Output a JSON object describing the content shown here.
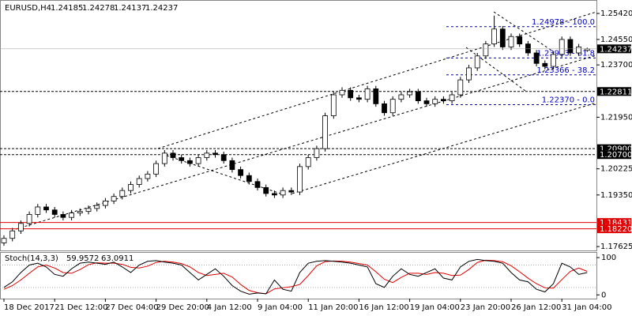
{
  "chart_data": {
    "type": "candlestick",
    "title": "EURUSD,H4",
    "categories": [
      "18 Dec 2017",
      null,
      null,
      null,
      null,
      null,
      "21 Dec 12:00",
      null,
      null,
      null,
      null,
      null,
      "27 Dec 04:00",
      null,
      null,
      null,
      null,
      null,
      "29 Dec 20:00",
      null,
      null,
      null,
      null,
      null,
      "4 Jan 12:00",
      null,
      null,
      null,
      null,
      null,
      "9 Jan 04:00",
      null,
      null,
      null,
      null,
      null,
      "11 Jan 20:00",
      null,
      null,
      null,
      null,
      null,
      "16 Jan 12:00",
      null,
      null,
      null,
      null,
      null,
      "19 Jan 04:00",
      null,
      null,
      null,
      null,
      null,
      "23 Jan 20:00",
      null,
      null,
      null,
      null,
      null,
      "26 Jan 12:00",
      null,
      null,
      null,
      null,
      null,
      "31 Jan 04:00",
      null,
      null,
      null
    ],
    "open": [
      1.1775,
      1.179,
      1.1815,
      1.184,
      1.187,
      1.1895,
      1.1885,
      1.187,
      1.186,
      1.1875,
      1.188,
      1.189,
      1.19,
      1.1915,
      1.193,
      1.195,
      1.197,
      1.199,
      1.2005,
      1.204,
      1.2075,
      1.206,
      1.205,
      1.204,
      1.206,
      1.2075,
      1.207,
      1.205,
      1.202,
      1.2,
      1.198,
      1.196,
      1.194,
      1.1935,
      1.195,
      1.1945,
      1.203,
      1.206,
      1.209,
      1.22,
      1.227,
      1.2285,
      1.226,
      1.2255,
      1.229,
      1.224,
      1.221,
      1.2255,
      1.227,
      1.228,
      1.225,
      1.224,
      1.2255,
      1.225,
      1.227,
      1.232,
      1.236,
      1.24,
      1.244,
      1.249,
      1.243,
      1.2465,
      1.244,
      1.241,
      1.2375,
      1.2365,
      1.2405,
      1.2455,
      1.241,
      1.24185
    ],
    "high": [
      1.18,
      1.1825,
      1.185,
      1.188,
      1.1905,
      1.1905,
      1.1895,
      1.188,
      1.1885,
      1.189,
      1.19,
      1.191,
      1.1925,
      1.194,
      1.196,
      1.198,
      1.2,
      1.2015,
      1.205,
      1.2085,
      1.2085,
      1.207,
      1.206,
      1.207,
      1.2085,
      1.2085,
      1.208,
      1.206,
      1.203,
      1.201,
      1.199,
      1.197,
      1.195,
      1.196,
      1.196,
      1.204,
      1.207,
      1.21,
      1.221,
      1.228,
      1.2295,
      1.2295,
      1.227,
      1.23,
      1.23,
      1.225,
      1.2265,
      1.228,
      1.229,
      1.229,
      1.226,
      1.2265,
      1.2265,
      1.228,
      1.233,
      1.237,
      1.241,
      1.245,
      1.2535,
      1.25,
      1.2475,
      1.2475,
      1.245,
      1.242,
      1.2385,
      1.2415,
      1.2465,
      1.2465,
      1.244,
      1.24278
    ],
    "low": [
      1.1765,
      1.178,
      1.1805,
      1.183,
      1.186,
      1.1875,
      1.186,
      1.185,
      1.185,
      1.1865,
      1.187,
      1.188,
      1.189,
      1.1905,
      1.192,
      1.194,
      1.196,
      1.198,
      1.1995,
      1.203,
      1.205,
      1.204,
      1.203,
      1.203,
      1.205,
      1.206,
      1.204,
      1.201,
      1.199,
      1.197,
      1.195,
      1.193,
      1.1925,
      1.1925,
      1.1935,
      1.1935,
      1.202,
      1.205,
      1.208,
      1.219,
      1.226,
      1.225,
      1.2245,
      1.2245,
      1.223,
      1.22,
      1.22,
      1.2245,
      1.226,
      1.224,
      1.223,
      1.223,
      1.224,
      1.224,
      1.226,
      1.231,
      1.235,
      1.239,
      1.243,
      1.242,
      1.242,
      1.243,
      1.24,
      1.2365,
      1.2355,
      1.2355,
      1.2395,
      1.24,
      1.24,
      1.24137
    ],
    "close": [
      1.179,
      1.1815,
      1.184,
      1.187,
      1.1895,
      1.1885,
      1.187,
      1.186,
      1.1875,
      1.188,
      1.189,
      1.19,
      1.1915,
      1.193,
      1.195,
      1.197,
      1.199,
      1.2005,
      1.204,
      1.2075,
      1.206,
      1.205,
      1.204,
      1.206,
      1.2075,
      1.207,
      1.205,
      1.202,
      1.2,
      1.198,
      1.196,
      1.194,
      1.1935,
      1.195,
      1.1945,
      1.203,
      1.206,
      1.209,
      1.22,
      1.227,
      1.2285,
      1.226,
      1.2255,
      1.229,
      1.224,
      1.221,
      1.2255,
      1.227,
      1.228,
      1.225,
      1.224,
      1.2255,
      1.225,
      1.227,
      1.232,
      1.236,
      1.24,
      1.244,
      1.249,
      1.243,
      1.2465,
      1.244,
      1.241,
      1.2375,
      1.2365,
      1.2405,
      1.2455,
      1.241,
      1.243,
      1.24237
    ],
    "ylim": [
      1.1747,
      1.2587
    ],
    "yticks": [
      {
        "value": 1.2542,
        "label": "1.25420"
      },
      {
        "value": 1.2455,
        "label": "1.24550"
      },
      {
        "value": 1.237,
        "label": "1.23700"
      },
      {
        "value": 1.2195,
        "label": "1.21950"
      },
      {
        "value": 1.20225,
        "label": "1.20225"
      },
      {
        "value": 1.1935,
        "label": "1.19350"
      },
      {
        "value": 1.17625,
        "label": "1.17625"
      }
    ],
    "hlines": [
      {
        "value": 1.22811,
        "label": "1.22811",
        "color": "#000000"
      },
      {
        "value": 1.209,
        "label": "1.20900",
        "color": "#000000"
      },
      {
        "value": 1.207,
        "label": "1.20700",
        "color": "#000000"
      },
      {
        "value": 1.18431,
        "label": "1.18431",
        "color": "#e00000"
      },
      {
        "value": 1.1822,
        "label": "1.18220",
        "color": "#e00000"
      }
    ],
    "fib": [
      {
        "value": 1.24978,
        "label": "1.24978 - 100.0"
      },
      {
        "value": 1.23933,
        "label": "1.23933 - 61.8"
      },
      {
        "value": 1.23366,
        "label": "1.23366 - 38.2"
      },
      {
        "value": 1.2237,
        "label": "1.22370 - 0.0"
      }
    ],
    "fib_color": "#0000cc",
    "stoch": {
      "title": "Stoch(14,3,3)",
      "ylim": [
        -10,
        115
      ],
      "yticks": [
        100,
        0
      ],
      "levels": [
        80,
        20
      ],
      "main": {
        "color": "#000000",
        "values": [
          20,
          35,
          60,
          80,
          85,
          75,
          55,
          50,
          70,
          85,
          88,
          85,
          82,
          88,
          75,
          60,
          80,
          90,
          92,
          88,
          85,
          80,
          60,
          40,
          55,
          70,
          50,
          25,
          10,
          2,
          5,
          3,
          40,
          15,
          10,
          60,
          85,
          90,
          92,
          90,
          88,
          85,
          80,
          75,
          30,
          20,
          50,
          70,
          55,
          50,
          60,
          70,
          45,
          40,
          75,
          90,
          95,
          92,
          90,
          85,
          60,
          40,
          35,
          15,
          8,
          30,
          85,
          75,
          55,
          59.9572
        ]
      },
      "signal": {
        "color": "#e00000",
        "values": [
          15,
          25,
          40,
          58,
          75,
          80,
          72,
          60,
          58,
          68,
          81,
          86,
          85,
          85,
          82,
          74,
          72,
          77,
          87,
          90,
          88,
          84,
          75,
          60,
          52,
          55,
          58,
          48,
          28,
          12,
          6,
          3,
          16,
          19,
          22,
          28,
          52,
          78,
          89,
          91,
          90,
          88,
          84,
          80,
          62,
          42,
          33,
          47,
          58,
          58,
          55,
          60,
          58,
          52,
          53,
          68,
          87,
          93,
          92,
          89,
          78,
          62,
          45,
          30,
          19,
          18,
          41,
          63,
          72,
          63.0911
        ]
      }
    }
  }
}
